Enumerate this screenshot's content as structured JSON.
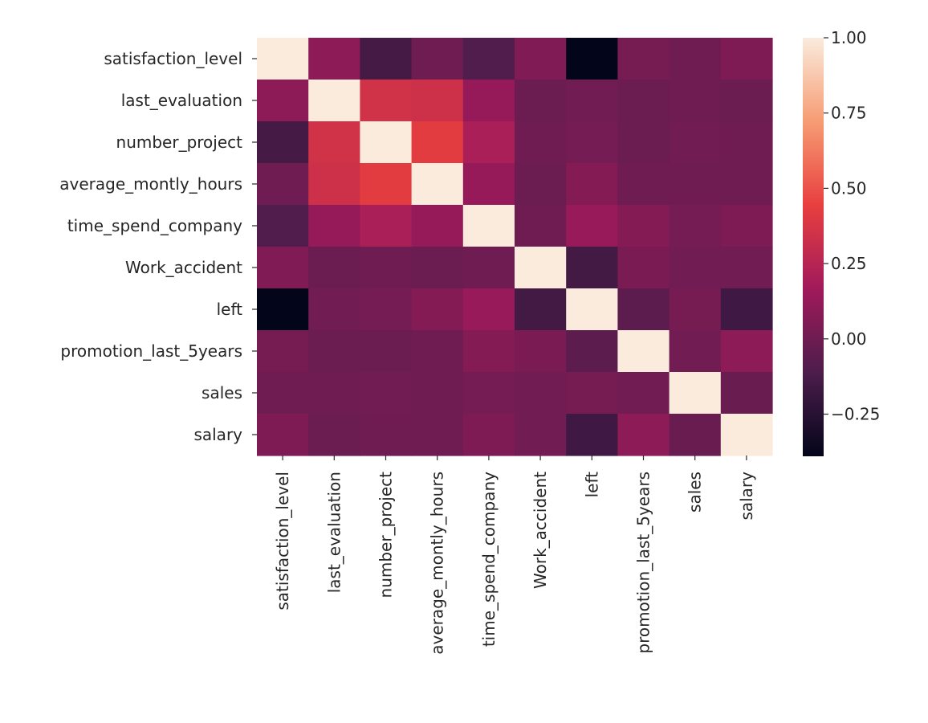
{
  "chart_data": {
    "type": "heatmap",
    "title": "",
    "xlabel": "",
    "ylabel": "",
    "rows": [
      "satisfaction_level",
      "last_evaluation",
      "number_project",
      "average_montly_hours",
      "time_spend_company",
      "Work_accident",
      "left",
      "promotion_last_5years",
      "sales",
      "salary"
    ],
    "columns": [
      "satisfaction_level",
      "last_evaluation",
      "number_project",
      "average_montly_hours",
      "time_spend_company",
      "Work_accident",
      "left",
      "promotion_last_5years",
      "sales",
      "salary"
    ],
    "values": [
      [
        1.0,
        0.1,
        -0.14,
        0.0,
        -0.1,
        0.06,
        -0.39,
        0.03,
        0.0,
        0.05
      ],
      [
        0.1,
        1.0,
        0.35,
        0.34,
        0.13,
        -0.01,
        0.01,
        -0.01,
        0.0,
        -0.01
      ],
      [
        -0.14,
        0.35,
        1.0,
        0.42,
        0.2,
        0.0,
        0.02,
        -0.01,
        0.01,
        0.0
      ],
      [
        0.0,
        0.34,
        0.42,
        1.0,
        0.13,
        -0.01,
        0.07,
        0.0,
        0.0,
        0.0
      ],
      [
        -0.1,
        0.13,
        0.2,
        0.13,
        1.0,
        0.0,
        0.14,
        0.07,
        0.02,
        0.05
      ],
      [
        0.06,
        -0.01,
        0.0,
        -0.01,
        0.0,
        1.0,
        -0.15,
        0.04,
        0.01,
        0.01
      ],
      [
        -0.39,
        0.01,
        0.02,
        0.07,
        0.14,
        -0.15,
        1.0,
        -0.06,
        0.03,
        -0.16
      ],
      [
        0.03,
        -0.01,
        -0.01,
        0.0,
        0.07,
        0.04,
        -0.06,
        1.0,
        0.01,
        0.1
      ],
      [
        0.0,
        0.0,
        0.01,
        0.0,
        0.02,
        0.01,
        0.03,
        0.01,
        1.0,
        -0.02
      ],
      [
        0.05,
        -0.01,
        0.0,
        0.0,
        0.05,
        0.01,
        -0.16,
        0.1,
        -0.02,
        1.0
      ]
    ],
    "colorbar": {
      "colormap": "rocket",
      "range": [
        -0.39,
        1.0
      ],
      "ticks": [
        -0.25,
        0.0,
        0.25,
        0.5,
        0.75,
        1.0
      ],
      "tick_labels": [
        "−0.25",
        "0.00",
        "0.25",
        "0.50",
        "0.75",
        "1.00"
      ]
    },
    "colors": [
      "#03051a",
      "#4c1d4b",
      "#a11a5b",
      "#e83f3f",
      "#f69c73",
      "#faebdd"
    ]
  }
}
